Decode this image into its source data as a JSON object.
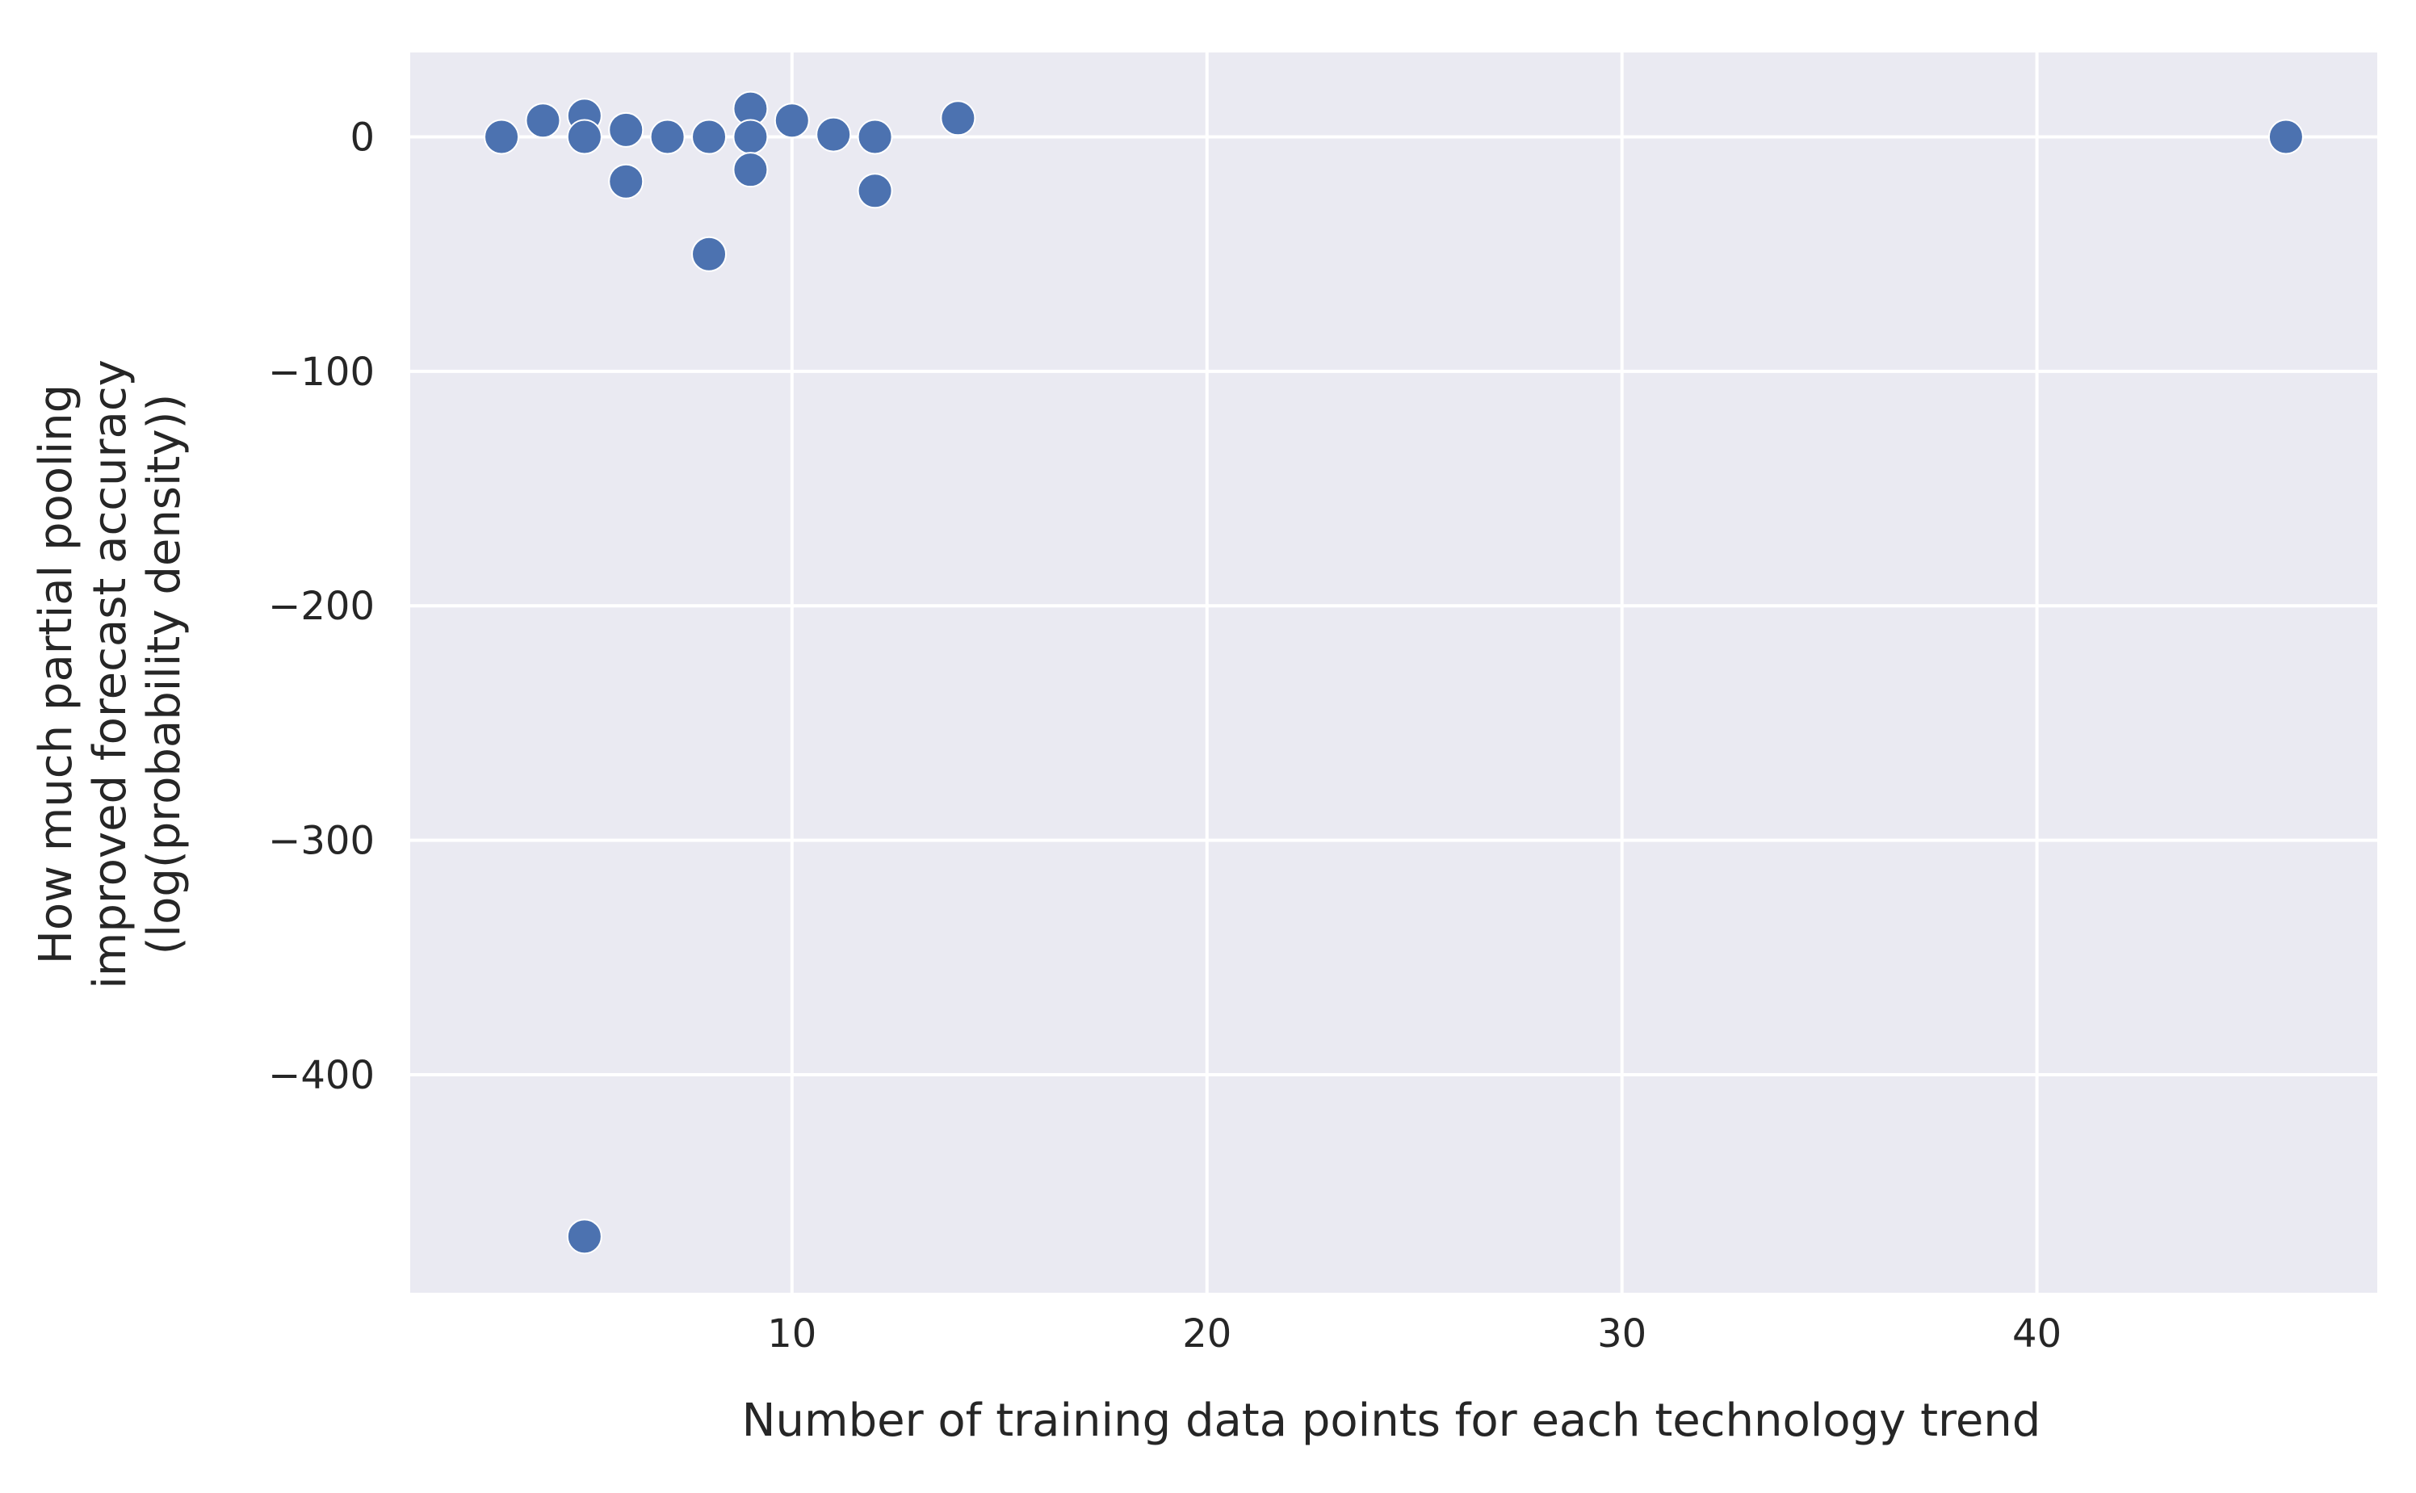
{
  "chart_data": {
    "type": "scatter",
    "title": "",
    "xlabel": "Number of training data points for each technology trend",
    "ylabel_lines": [
      "How much partial pooling",
      "improved forecast accuracy",
      "(log(probability density))"
    ],
    "xlim": [
      0.8,
      48.2
    ],
    "ylim": [
      -493,
      36
    ],
    "xticks": [
      10,
      20,
      30,
      40
    ],
    "yticks": [
      0,
      -100,
      -200,
      -300,
      -400
    ],
    "xtick_labels": [
      "10",
      "20",
      "30",
      "40"
    ],
    "ytick_labels": [
      "0",
      "−100",
      "−200",
      "−300",
      "−400"
    ],
    "grid": true,
    "background_color": "#eaeaf2",
    "grid_color": "#ffffff",
    "marker_color": "#4c72b0",
    "points": [
      {
        "x": 3,
        "y": 0
      },
      {
        "x": 4,
        "y": 7
      },
      {
        "x": 5,
        "y": 9
      },
      {
        "x": 5,
        "y": 0
      },
      {
        "x": 5,
        "y": -469
      },
      {
        "x": 6,
        "y": 3
      },
      {
        "x": 6,
        "y": -19
      },
      {
        "x": 7,
        "y": 0
      },
      {
        "x": 8,
        "y": 0
      },
      {
        "x": 8,
        "y": -50
      },
      {
        "x": 9,
        "y": 12
      },
      {
        "x": 9,
        "y": 0
      },
      {
        "x": 9,
        "y": -14
      },
      {
        "x": 10,
        "y": 7
      },
      {
        "x": 11,
        "y": 1
      },
      {
        "x": 12,
        "y": 0
      },
      {
        "x": 12,
        "y": -23
      },
      {
        "x": 14,
        "y": 8
      },
      {
        "x": 46,
        "y": 0
      }
    ]
  }
}
